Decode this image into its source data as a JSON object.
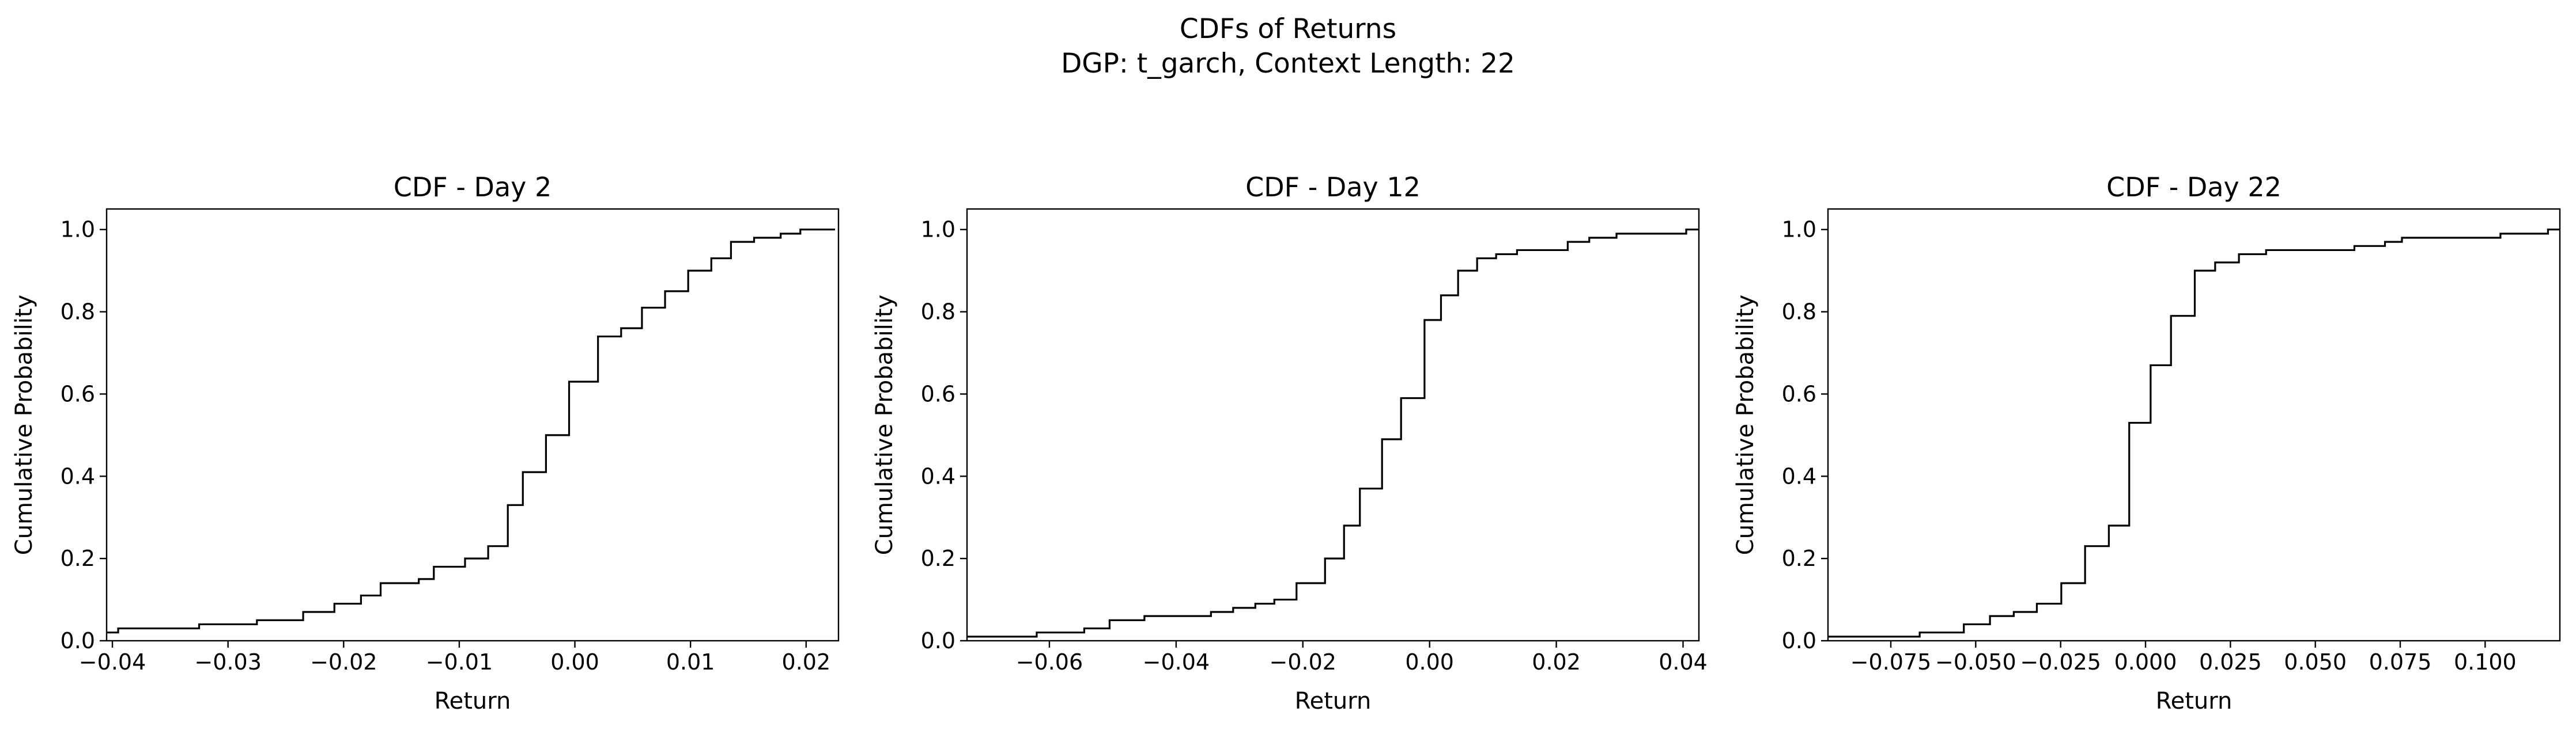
{
  "figure": {
    "title_line1": "CDFs of Returns",
    "title_line2": "DGP: t_garch, Context Length: 22"
  },
  "colors": {
    "line": "#000000",
    "background": "#ffffff"
  },
  "chart_data": [
    {
      "type": "line",
      "step": "post",
      "title": "CDF - Day 2",
      "xlabel": "Return",
      "ylabel": "Cumulative Probability",
      "xlim": [
        -0.0405,
        0.0228
      ],
      "ylim": [
        0,
        1.05
      ],
      "xticks": [
        -0.04,
        -0.03,
        -0.02,
        -0.01,
        0.0,
        0.01,
        0.02
      ],
      "xtick_labels": [
        "−0.04",
        "−0.03",
        "−0.02",
        "−0.01",
        "0.00",
        "0.01",
        "0.02"
      ],
      "yticks": [
        0.0,
        0.2,
        0.4,
        0.6,
        0.8,
        1.0
      ],
      "ytick_labels": [
        "0.0",
        "0.2",
        "0.4",
        "0.6",
        "0.8",
        "1.0"
      ],
      "grid": false,
      "series": [
        {
          "x": [
            -0.0405,
            -0.0395,
            -0.0325,
            -0.0275,
            -0.0235,
            -0.0208,
            -0.0185,
            -0.0168,
            -0.0135,
            -0.0122,
            -0.0095,
            -0.0075,
            -0.0058,
            -0.0045,
            -0.0025,
            -0.0005,
            0.002,
            0.004,
            0.0058,
            0.0078,
            0.0098,
            0.0118,
            0.0135,
            0.0155,
            0.0178,
            0.0195,
            0.0225
          ],
          "y": [
            0.02,
            0.03,
            0.04,
            0.05,
            0.07,
            0.09,
            0.11,
            0.14,
            0.15,
            0.18,
            0.2,
            0.23,
            0.33,
            0.41,
            0.5,
            0.63,
            0.74,
            0.76,
            0.81,
            0.85,
            0.9,
            0.93,
            0.97,
            0.98,
            0.99,
            1.0,
            1.0
          ]
        }
      ]
    },
    {
      "type": "line",
      "step": "post",
      "title": "CDF - Day 12",
      "xlabel": "Return",
      "ylabel": "Cumulative Probability",
      "xlim": [
        -0.073,
        0.0425
      ],
      "ylim": [
        0,
        1.05
      ],
      "xticks": [
        -0.06,
        -0.04,
        -0.02,
        0.0,
        0.02,
        0.04
      ],
      "xtick_labels": [
        "−0.06",
        "−0.04",
        "−0.02",
        "0.00",
        "0.02",
        "0.04"
      ],
      "yticks": [
        0.0,
        0.2,
        0.4,
        0.6,
        0.8,
        1.0
      ],
      "ytick_labels": [
        "0.0",
        "0.2",
        "0.4",
        "0.6",
        "0.8",
        "1.0"
      ],
      "grid": false,
      "series": [
        {
          "x": [
            -0.073,
            -0.062,
            -0.0545,
            -0.0505,
            -0.045,
            -0.0345,
            -0.031,
            -0.0275,
            -0.0245,
            -0.021,
            -0.0165,
            -0.0135,
            -0.011,
            -0.0075,
            -0.0045,
            -0.0008,
            0.0018,
            0.0045,
            0.0075,
            0.0105,
            0.0138,
            0.0218,
            0.0252,
            0.0295,
            0.0335,
            0.0405,
            0.0425
          ],
          "y": [
            0.01,
            0.02,
            0.03,
            0.05,
            0.06,
            0.07,
            0.08,
            0.09,
            0.1,
            0.14,
            0.2,
            0.28,
            0.37,
            0.49,
            0.59,
            0.78,
            0.84,
            0.9,
            0.93,
            0.94,
            0.95,
            0.97,
            0.98,
            0.99,
            0.99,
            1.0,
            1.0
          ]
        }
      ]
    },
    {
      "type": "line",
      "step": "post",
      "title": "CDF - Day 22",
      "xlabel": "Return",
      "ylabel": "Cumulative Probability",
      "xlim": [
        -0.0935,
        0.122
      ],
      "ylim": [
        0,
        1.05
      ],
      "xticks": [
        -0.075,
        -0.05,
        -0.025,
        0.0,
        0.025,
        0.05,
        0.075,
        0.1
      ],
      "xtick_labels": [
        "−0.075",
        "−0.050",
        "−0.025",
        "0.000",
        "0.025",
        "0.050",
        "0.075",
        "0.100"
      ],
      "yticks": [
        0.0,
        0.2,
        0.4,
        0.6,
        0.8,
        1.0
      ],
      "ytick_labels": [
        "0.0",
        "0.2",
        "0.4",
        "0.6",
        "0.8",
        "1.0"
      ],
      "grid": false,
      "series": [
        {
          "x": [
            -0.0935,
            -0.0665,
            -0.0535,
            -0.0458,
            -0.0388,
            -0.032,
            -0.0248,
            -0.0178,
            -0.0108,
            -0.0048,
            0.0015,
            0.0075,
            0.0145,
            0.0205,
            0.0275,
            0.0355,
            0.0615,
            0.0705,
            0.0755,
            0.1045,
            0.1185,
            0.122
          ],
          "y": [
            0.01,
            0.02,
            0.04,
            0.06,
            0.07,
            0.09,
            0.14,
            0.23,
            0.28,
            0.53,
            0.67,
            0.79,
            0.9,
            0.92,
            0.94,
            0.95,
            0.96,
            0.97,
            0.98,
            0.99,
            1.0,
            1.0
          ]
        }
      ]
    }
  ]
}
